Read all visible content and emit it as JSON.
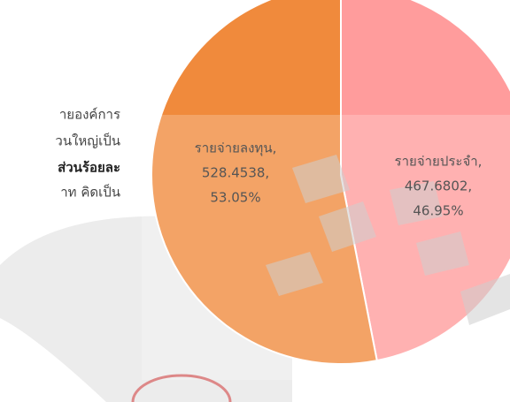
{
  "chart_data": {
    "type": "pie",
    "categories": [
      "รายจ่ายลงทุน,",
      "รายจ่ายประจำ,"
    ],
    "values": [
      528.4538,
      467.6802
    ],
    "value_labels": [
      "528.4538,",
      "467.6802,"
    ],
    "percentages": [
      53.05,
      46.95
    ],
    "percentage_labels": [
      "53.05%",
      "46.95%"
    ],
    "colors": [
      "#f08a3c",
      "#ff9c9c"
    ]
  },
  "document_lines": [
    "ายองค์การ",
    "วนใหญ่เป็น",
    "ส่วนร้อยละ",
    "าท คิดเป็น"
  ]
}
